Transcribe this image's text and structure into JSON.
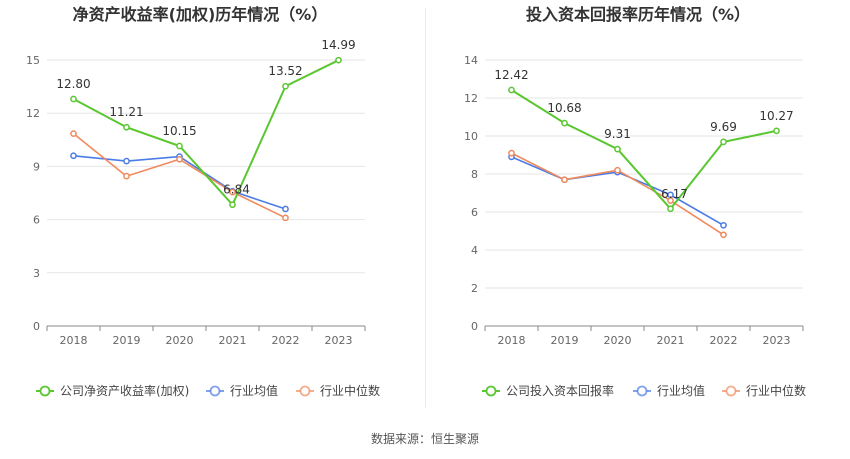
{
  "source_label": "数据来源：恒生聚源",
  "chart_data": [
    {
      "type": "line",
      "title": "净资产收益率(加权)历年情况（%）",
      "categories": [
        "2018",
        "2019",
        "2020",
        "2021",
        "2022",
        "2023"
      ],
      "ylim": [
        0,
        15
      ],
      "yticks": [
        0,
        3,
        6,
        9,
        12,
        15
      ],
      "grid": true,
      "legend_position": "bottom",
      "series": [
        {
          "name": "公司净资产收益率(加权)",
          "color": "#5ac731",
          "values": [
            12.8,
            11.21,
            10.15,
            6.84,
            13.52,
            14.99
          ],
          "labels": [
            "12.80",
            "11.21",
            "10.15",
            "6.84",
            "13.52",
            "14.99"
          ]
        },
        {
          "name": "行业均值",
          "color": "#4b7be6",
          "values": [
            9.6,
            9.3,
            9.55,
            7.6,
            6.6,
            null
          ]
        },
        {
          "name": "行业中位数",
          "color": "#f08a5d",
          "values": [
            10.85,
            8.45,
            9.4,
            7.55,
            6.1,
            null
          ]
        }
      ]
    },
    {
      "type": "line",
      "title": "投入资本回报率历年情况（%）",
      "categories": [
        "2018",
        "2019",
        "2020",
        "2021",
        "2022",
        "2023"
      ],
      "ylim": [
        0,
        14
      ],
      "yticks": [
        0,
        2,
        4,
        6,
        8,
        10,
        12,
        14
      ],
      "grid": true,
      "legend_position": "bottom",
      "series": [
        {
          "name": "公司投入资本回报率",
          "color": "#5ac731",
          "values": [
            12.42,
            10.68,
            9.31,
            6.17,
            9.69,
            10.27
          ],
          "labels": [
            "12.42",
            "10.68",
            "9.31",
            "6.17",
            "9.69",
            "10.27"
          ]
        },
        {
          "name": "行业均值",
          "color": "#4b7be6",
          "values": [
            8.9,
            7.7,
            8.1,
            6.9,
            5.3,
            null
          ]
        },
        {
          "name": "行业中位数",
          "color": "#f08a5d",
          "values": [
            9.1,
            7.7,
            8.2,
            6.6,
            4.8,
            null
          ]
        }
      ]
    }
  ]
}
